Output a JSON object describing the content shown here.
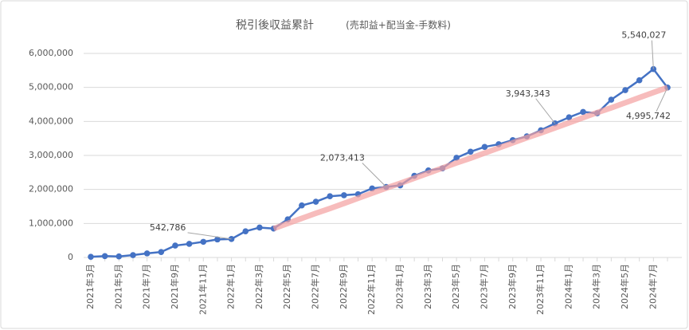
{
  "chart_data": {
    "type": "line",
    "title": "税引後収益累計",
    "subtitle": "(売却益+配当金-手数料)",
    "categories": [
      "2021年3月",
      null,
      "2021年5月",
      null,
      "2021年7月",
      null,
      "2021年9月",
      null,
      "2021年11月",
      null,
      "2022年1月",
      null,
      "2022年3月",
      null,
      "2022年5月",
      null,
      "2022年7月",
      null,
      "2022年9月",
      null,
      "2022年11月",
      null,
      "2023年1月",
      null,
      "2023年3月",
      null,
      "2023年5月",
      null,
      "2023年7月",
      null,
      "2023年9月",
      null,
      "2023年11月",
      null,
      "2024年1月",
      null,
      "2024年3月",
      null,
      "2024年5月",
      null,
      "2024年7月",
      null
    ],
    "series": [
      {
        "color": "#4472c4",
        "values": [
          20000,
          40000,
          30000,
          70000,
          120000,
          160000,
          350000,
          400000,
          460000,
          530000,
          542786,
          770000,
          880000,
          850000,
          1120000,
          1530000,
          1640000,
          1800000,
          1830000,
          1860000,
          2030000,
          2073413,
          2120000,
          2400000,
          2560000,
          2620000,
          2930000,
          3110000,
          3250000,
          3330000,
          3450000,
          3560000,
          3740000,
          3943343,
          4120000,
          4280000,
          4240000,
          4640000,
          4920000,
          5210000,
          5540027,
          4995742
        ],
        "value_labels": [
          null,
          null,
          null,
          null,
          null,
          null,
          null,
          null,
          null,
          null,
          "542,786",
          null,
          null,
          null,
          null,
          null,
          null,
          null,
          null,
          null,
          null,
          "2,073,413",
          null,
          null,
          null,
          null,
          null,
          null,
          null,
          null,
          null,
          null,
          null,
          "3,943,343",
          null,
          null,
          null,
          null,
          null,
          null,
          "5,540,027",
          "4,995,742"
        ]
      },
      {
        "color": "#f4a0a0",
        "values": [
          null,
          null,
          null,
          null,
          null,
          null,
          null,
          null,
          null,
          null,
          null,
          null,
          null,
          850000,
          1000000,
          1150000,
          1300000,
          1440000,
          1590000,
          1740000,
          1890000,
          2040000,
          2180000,
          2330000,
          2480000,
          2630000,
          2780000,
          2920000,
          3070000,
          3220000,
          3370000,
          3520000,
          3660000,
          3810000,
          3960000,
          4110000,
          4260000,
          4400000,
          4550000,
          4700000,
          4850000,
          4995742
        ]
      }
    ],
    "ylim": [
      0,
      6000000
    ],
    "yticks": [
      0,
      {
        "value": 1000000,
        "label": "1,000,000"
      },
      {
        "value": 2000000,
        "label": "2,000,000"
      },
      {
        "value": 3000000,
        "label": "3,000,000"
      },
      {
        "value": 4000000,
        "label": "4,000,000"
      },
      {
        "value": 5000000,
        "label": "5,000,000"
      },
      {
        "value": 6000000,
        "label": "6,000,000"
      }
    ],
    "grid": true
  }
}
